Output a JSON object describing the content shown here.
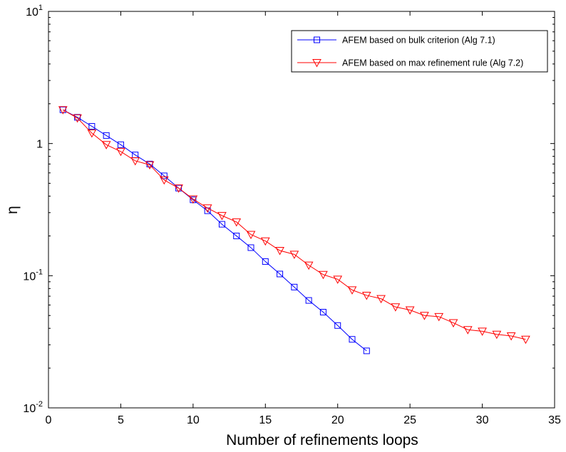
{
  "chart_data": {
    "type": "line",
    "title": "",
    "xlabel": "Number of refinements loops",
    "ylabel": "η",
    "xlim": [
      0,
      35
    ],
    "xticks": [
      0,
      5,
      10,
      15,
      20,
      25,
      30,
      35
    ],
    "yscale": "log",
    "ylim": [
      0.01,
      10
    ],
    "yticks": [
      {
        "value": 0.01,
        "base": "10",
        "exp": "-2"
      },
      {
        "value": 0.1,
        "base": "10",
        "exp": "-1"
      },
      {
        "value": 1,
        "base": "1",
        "exp": ""
      },
      {
        "value": 10,
        "base": "10",
        "exp": "1"
      }
    ],
    "grid": false,
    "legend_position": "top-right",
    "series": [
      {
        "name": "AFEM based on bulk criterion (Alg 7.1)",
        "color": "#0000ff",
        "marker": "square",
        "x": [
          1,
          2,
          3,
          4,
          5,
          6,
          7,
          8,
          9,
          10,
          11,
          12,
          13,
          14,
          15,
          16,
          17,
          18,
          19,
          20,
          21,
          22
        ],
        "y": [
          1.8,
          1.58,
          1.35,
          1.15,
          0.98,
          0.82,
          0.7,
          0.57,
          0.46,
          0.375,
          0.31,
          0.245,
          0.2,
          0.163,
          0.128,
          0.103,
          0.082,
          0.065,
          0.053,
          0.042,
          0.033,
          0.027
        ]
      },
      {
        "name": "AFEM based on max refinement rule (Alg 7.2)",
        "color": "#ff0000",
        "marker": "triangle-down",
        "x": [
          1,
          2,
          3,
          4,
          5,
          6,
          7,
          8,
          9,
          10,
          11,
          12,
          13,
          14,
          15,
          16,
          17,
          18,
          19,
          20,
          21,
          22,
          23,
          24,
          25,
          26,
          27,
          28,
          29,
          30,
          31,
          32,
          33
        ],
        "y": [
          1.8,
          1.56,
          1.2,
          0.98,
          0.87,
          0.74,
          0.69,
          0.53,
          0.46,
          0.38,
          0.325,
          0.285,
          0.255,
          0.205,
          0.183,
          0.155,
          0.145,
          0.12,
          0.102,
          0.094,
          0.078,
          0.071,
          0.067,
          0.058,
          0.055,
          0.05,
          0.049,
          0.044,
          0.039,
          0.038,
          0.036,
          0.035,
          0.033
        ]
      }
    ]
  }
}
